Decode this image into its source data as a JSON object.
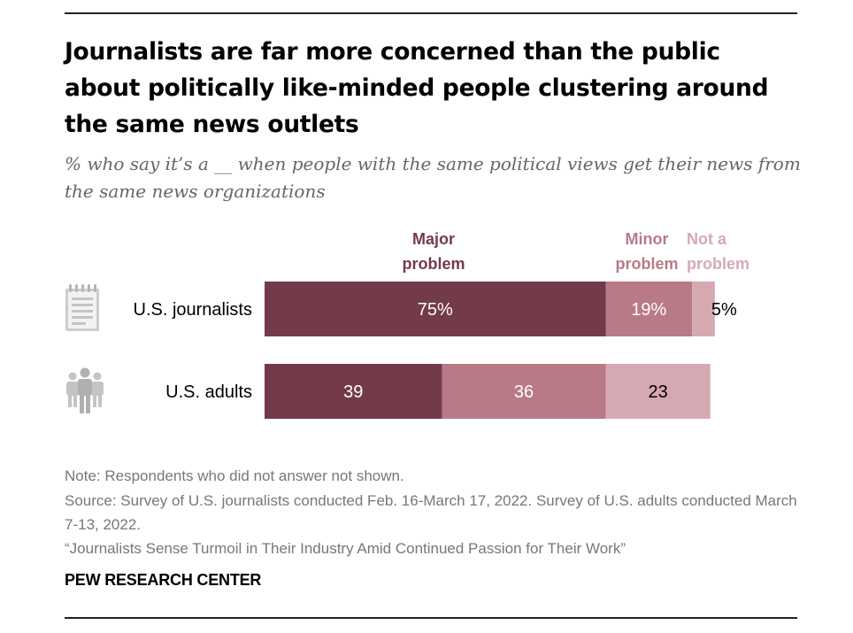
{
  "title": "Journalists are far more concerned than the public about politically like-minded people clustering around the same news outlets",
  "subtitle": "% who say it’s a __ when people with the same political views get their news from the same news organizations",
  "colors": {
    "major": "#733b49",
    "minor": "#b87a86",
    "not": "#d6a9b2"
  },
  "chart_data": {
    "type": "bar",
    "orientation": "horizontal",
    "stacked": true,
    "categories": [
      "U.S. journalists",
      "U.S. adults"
    ],
    "series": [
      {
        "name": "Major problem",
        "values": [
          75,
          39
        ],
        "labels": [
          "75%",
          "39"
        ]
      },
      {
        "name": "Minor problem",
        "values": [
          19,
          36
        ],
        "labels": [
          "19%",
          "36"
        ]
      },
      {
        "name": "Not a problem",
        "values": [
          5,
          23
        ],
        "labels": [
          "5%",
          "23"
        ]
      }
    ],
    "xlim": [
      0,
      100
    ],
    "grid": false,
    "legend": "top"
  },
  "icons": [
    "notepad-icon",
    "people-icon"
  ],
  "notes": {
    "note": "Note: Respondents who did not answer not shown.",
    "source": "Source: Survey of U.S. journalists conducted Feb. 16-March 17, 2022. Survey of U.S. adults conducted March 7-13, 2022.",
    "report": "“Journalists Sense Turmoil in Their Industry Amid Continued Passion for Their Work”"
  },
  "brand": "PEW RESEARCH CENTER"
}
